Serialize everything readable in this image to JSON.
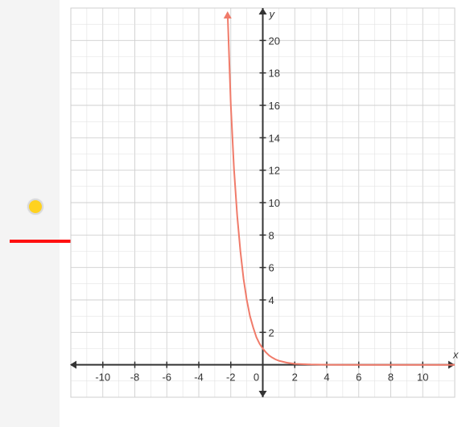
{
  "colors": {
    "curve": "#f07b6a",
    "grid_minor": "#e2e2e2",
    "grid_major": "#cfcfcf",
    "axis": "#333333",
    "tick_label": "#333333",
    "side_panel": "#f4f4f4",
    "status_dot": "#ffd21f",
    "red_marker": "#ff1010"
  },
  "icons": {
    "status_dot": "yellow-dot-icon",
    "marker": "red-line-marker"
  },
  "chart_data": {
    "type": "line",
    "title": "",
    "xlabel": "x",
    "ylabel": "y",
    "xlim": [
      -12,
      12
    ],
    "ylim": [
      -2,
      22
    ],
    "grid": true,
    "x_ticks": [
      -10,
      -8,
      -6,
      -4,
      -2,
      0,
      2,
      4,
      6,
      8,
      10
    ],
    "y_ticks": [
      2,
      4,
      6,
      8,
      10,
      12,
      14,
      16,
      18,
      20
    ],
    "x_tick_labels": [
      "-10",
      "-8",
      "-6",
      "-4",
      "-2",
      "0",
      "2",
      "4",
      "6",
      "8",
      "10"
    ],
    "y_tick_labels": [
      "2",
      "4",
      "6",
      "8",
      "10",
      "12",
      "14",
      "16",
      "18",
      "20"
    ],
    "series": [
      {
        "x": [
          -2.2,
          -2,
          -1.8,
          -1.6,
          -1.4,
          -1.2,
          -1,
          -0.8,
          -0.6,
          -0.4,
          -0.2,
          0,
          0.2,
          0.4,
          0.6,
          0.8,
          1,
          1.5,
          2,
          3,
          4,
          6,
          8,
          10,
          12
        ],
        "y": [
          21.7,
          16,
          12.1,
          9.2,
          7.0,
          5.3,
          4.0,
          3.0,
          2.3,
          1.7,
          1.3,
          1.0,
          0.76,
          0.57,
          0.44,
          0.33,
          0.25,
          0.13,
          0.06,
          0.02,
          0.004,
          0.0,
          0.0,
          0.0,
          0.0
        ]
      }
    ]
  }
}
